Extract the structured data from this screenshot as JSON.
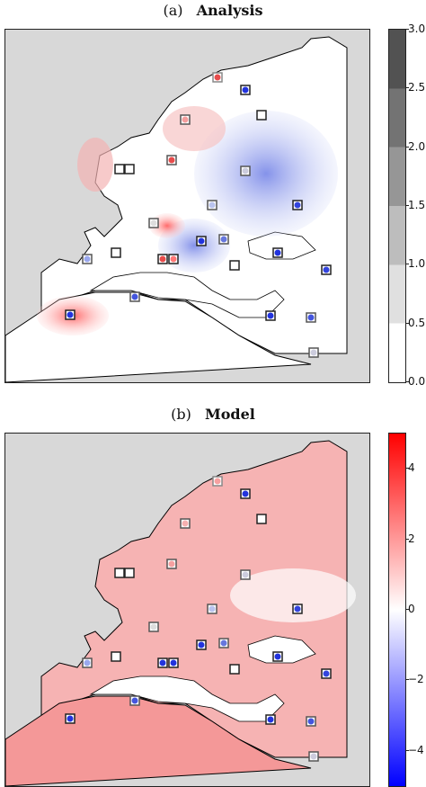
{
  "panels": [
    {
      "label": "(a)",
      "title": "Analysis",
      "colorbar": {
        "type": "sequential-greys",
        "ticks": [
          "0.0",
          "0.5",
          "1.0",
          "1.5",
          "2.0",
          "2.5",
          "3.0"
        ],
        "range": [
          0,
          3
        ],
        "colors": [
          "#ffffff",
          "#e0e0e0",
          "#bdbdbd",
          "#969696",
          "#737373",
          "#525252",
          "#252525"
        ]
      }
    },
    {
      "label": "(b)",
      "title": "Model",
      "colorbar": {
        "type": "diverging-bwr",
        "ticks": [
          "4",
          "2",
          "0",
          "−2",
          "−4"
        ],
        "range": [
          -5,
          5
        ],
        "colors": {
          "neg": "#0000ff",
          "zero": "#ffffff",
          "pos": "#ff0000"
        }
      }
    }
  ],
  "map_colors": {
    "land_background": "#d8d8d8",
    "sea": "#ffffff",
    "coastline": "#000000",
    "warm": "#f28e8e",
    "cool": "#9aa8ee"
  }
}
